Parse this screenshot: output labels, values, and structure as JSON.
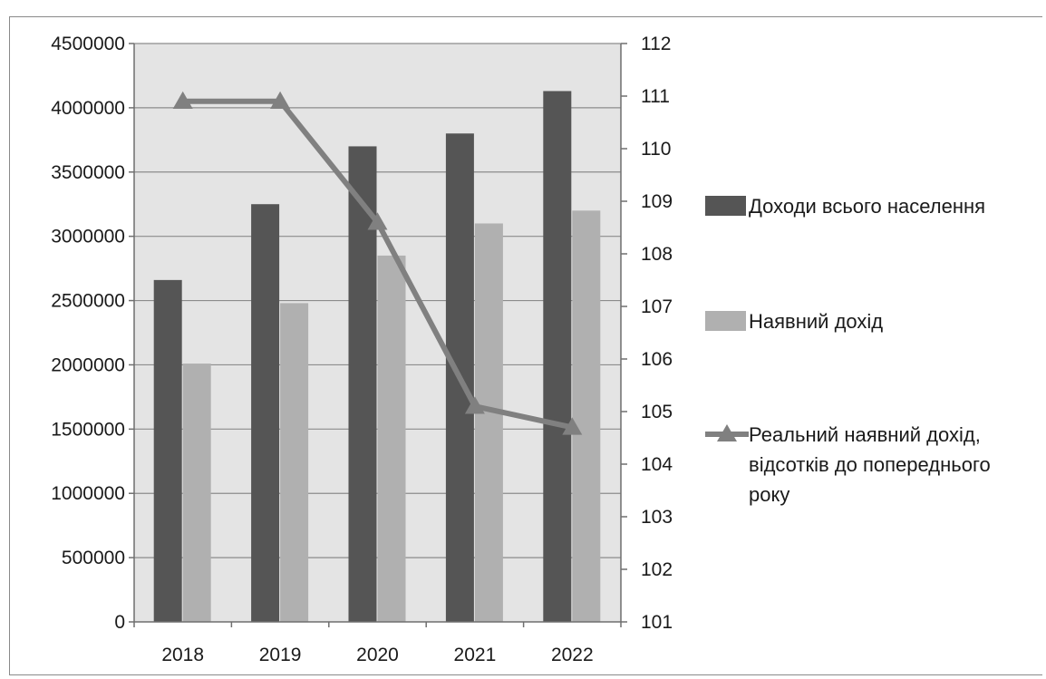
{
  "chart_data": {
    "type": "bar",
    "categories": [
      "2018",
      "2019",
      "2020",
      "2021",
      "2022"
    ],
    "series": [
      {
        "name": "Доходи всього населення",
        "kind": "bar",
        "axis": "left",
        "color": "#555555",
        "values": [
          2660000,
          3250000,
          3700000,
          3800000,
          4130000
        ]
      },
      {
        "name": "Наявний дохід",
        "kind": "bar",
        "axis": "left",
        "color": "#b0b0b0",
        "values": [
          2010000,
          2480000,
          2850000,
          3100000,
          3200000
        ]
      },
      {
        "name_lines": [
          "Реальний наявний дохід,",
          "відсотків до попереднього",
          "року"
        ],
        "kind": "line",
        "marker": "triangle",
        "axis": "right",
        "color": "#808080",
        "values": [
          110.9,
          110.9,
          108.6,
          105.1,
          104.7
        ]
      }
    ],
    "left_axis": {
      "min": 0,
      "max": 4500000,
      "step": 500000,
      "tick_labels": [
        "0",
        "500000",
        "1000000",
        "1500000",
        "2000000",
        "2500000",
        "3000000",
        "3500000",
        "4000000",
        "4500000"
      ]
    },
    "right_axis": {
      "min": 101,
      "max": 112,
      "step": 1,
      "tick_labels": [
        "101",
        "102",
        "103",
        "104",
        "105",
        "106",
        "107",
        "108",
        "109",
        "110",
        "111",
        "112"
      ]
    },
    "title": "",
    "xlabel": "",
    "ylabel": "",
    "grid": true,
    "plot_background": "#e4e4e4",
    "legend_position": "right"
  }
}
